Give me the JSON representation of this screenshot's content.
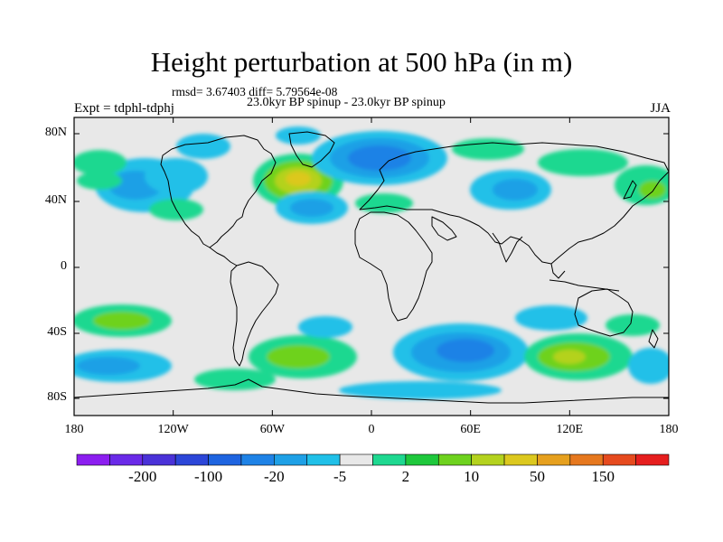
{
  "title": "Height perturbation at 500 hPa (in m)",
  "stats": "rmsd= 3.67403 diff= 5.79564e-08",
  "subtitle": "23.0kyr BP spinup - 23.0kyr BP spinup",
  "expt": "Expt = tdphl-tdphj",
  "season": "JJA",
  "lat_labels": [
    "80N",
    "40N",
    "0",
    "40S",
    "80S"
  ],
  "lon_labels": [
    "180",
    "120W",
    "60W",
    "0",
    "60E",
    "120E",
    "180"
  ],
  "colorbar": {
    "colors": [
      "#8c1ef0",
      "#6a2ae8",
      "#4a32d8",
      "#2c46d8",
      "#1e64e0",
      "#1e82e6",
      "#1ea0e6",
      "#20c0e8",
      "#e8e8e8",
      "#1ed890",
      "#1ec83c",
      "#6ed21e",
      "#b4d21e",
      "#dcc81e",
      "#e6a01e",
      "#e6781e",
      "#e64a1e",
      "#e61e1e"
    ],
    "labels": [
      "-200",
      "-100",
      "-20",
      "-5",
      "2",
      "10",
      "50",
      "150"
    ]
  },
  "chart_data": {
    "type": "heatmap",
    "title": "Height perturbation at 500 hPa (in m)",
    "lon_range": [
      -180,
      180
    ],
    "lat_range": [
      -90,
      90
    ],
    "anomalies": [
      {
        "lon": -135,
        "lat": 44,
        "value": -12
      },
      {
        "lon": -120,
        "lat": 55,
        "value": -5
      },
      {
        "lon": -160,
        "lat": 67,
        "value": 6
      },
      {
        "lon": -115,
        "lat": 30,
        "value": 5
      },
      {
        "lon": -55,
        "lat": 51,
        "value": 45
      },
      {
        "lon": -48,
        "lat": 34,
        "value": -15
      },
      {
        "lon": -60,
        "lat": 73,
        "value": -8
      },
      {
        "lon": -5,
        "lat": 66,
        "value": -35
      },
      {
        "lon": 22,
        "lat": 68,
        "value": -30
      },
      {
        "lon": 8,
        "lat": 40,
        "value": 4
      },
      {
        "lon": 60,
        "lat": 75,
        "value": 5
      },
      {
        "lon": 80,
        "lat": 48,
        "value": -12
      },
      {
        "lon": 130,
        "lat": 68,
        "value": 6
      },
      {
        "lon": 170,
        "lat": 50,
        "value": 6
      },
      {
        "lon": -165,
        "lat": -34,
        "value": 8
      },
      {
        "lon": -163,
        "lat": -60,
        "value": -8
      },
      {
        "lon": -115,
        "lat": -58,
        "value": 4
      },
      {
        "lon": -35,
        "lat": -48,
        "value": 6
      },
      {
        "lon": -30,
        "lat": -33,
        "value": -5
      },
      {
        "lon": 58,
        "lat": -55,
        "value": -35
      },
      {
        "lon": 100,
        "lat": -33,
        "value": -5
      },
      {
        "lon": 120,
        "lat": -55,
        "value": 25
      },
      {
        "lon": 165,
        "lat": -60,
        "value": -5
      }
    ]
  }
}
